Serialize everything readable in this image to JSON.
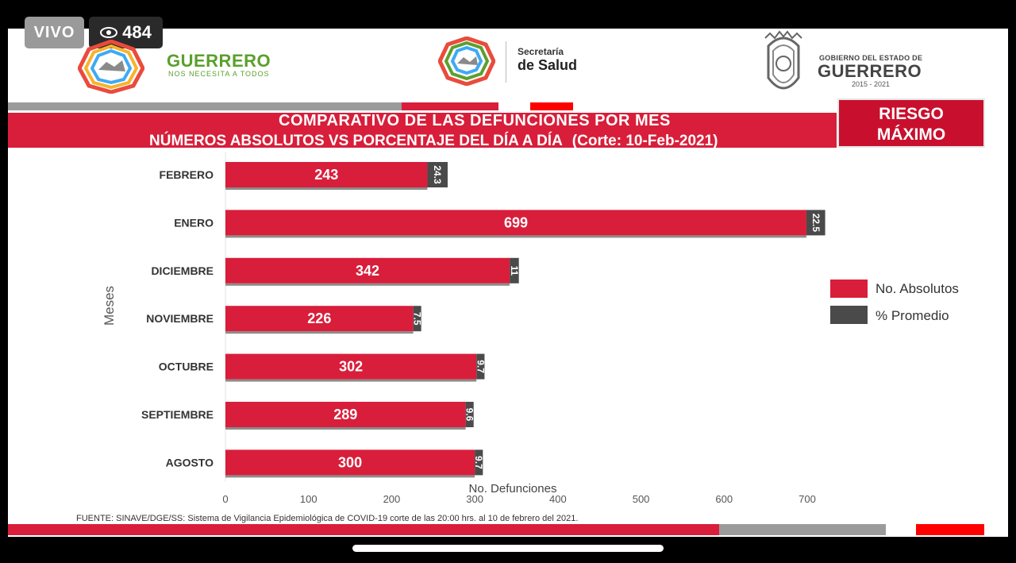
{
  "overlay": {
    "live_label": "VIVO",
    "viewer_count": "484"
  },
  "header": {
    "guerrero_title": "GUERRERO",
    "guerrero_slogan": "NOS NECESITA A TODOS",
    "salud_line1": "Secretaría",
    "salud_line2": "de Salud",
    "gob_line1": "GOBIERNO DEL ESTADO DE",
    "gob_line2": "GUERRERO",
    "gob_years": "2015 - 2021"
  },
  "title_line1": "COMPARATIVO DE LAS DEFUNCIONES POR MES",
  "title_line2": "NÚMEROS ABSOLUTOS VS PORCENTAJE DEL DÍA A DÍA",
  "title_corte": "(Corte: 10-Feb-2021)",
  "risk": {
    "line1": "RIESGO",
    "line2": "MÁXIMO"
  },
  "source_note": "FUENTE: SINAVE/DGE/SS: Sistema de Vigilancia Epidemiológica de COVID-19 corte de las 20:00 hrs. al 10 de  febrero del 2021.",
  "colors": {
    "absolutos": "#d81e3a",
    "promedio": "#4a4a4a",
    "brand_red": "#d81e3a"
  },
  "chart_data": {
    "type": "bar",
    "orientation": "horizontal",
    "categories": [
      "FEBRERO",
      "ENERO",
      "DICIEMBRE",
      "NOVIEMBRE",
      "OCTUBRE",
      "SEPTIEMBRE",
      "AGOSTO"
    ],
    "series": [
      {
        "name": "No. Absolutos",
        "values": [
          243,
          699,
          342,
          226,
          302,
          289,
          300
        ]
      },
      {
        "name": "% Promedio",
        "values": [
          24.3,
          22.5,
          11,
          7.5,
          9.7,
          9.6,
          9.7
        ]
      }
    ],
    "xlabel": "No. Defunciones",
    "ylabel": "Meses",
    "xlim": [
      0,
      700
    ],
    "xticks": [
      0,
      100,
      200,
      300,
      400,
      500,
      600,
      700
    ],
    "legend_position": "right",
    "grid": false
  }
}
